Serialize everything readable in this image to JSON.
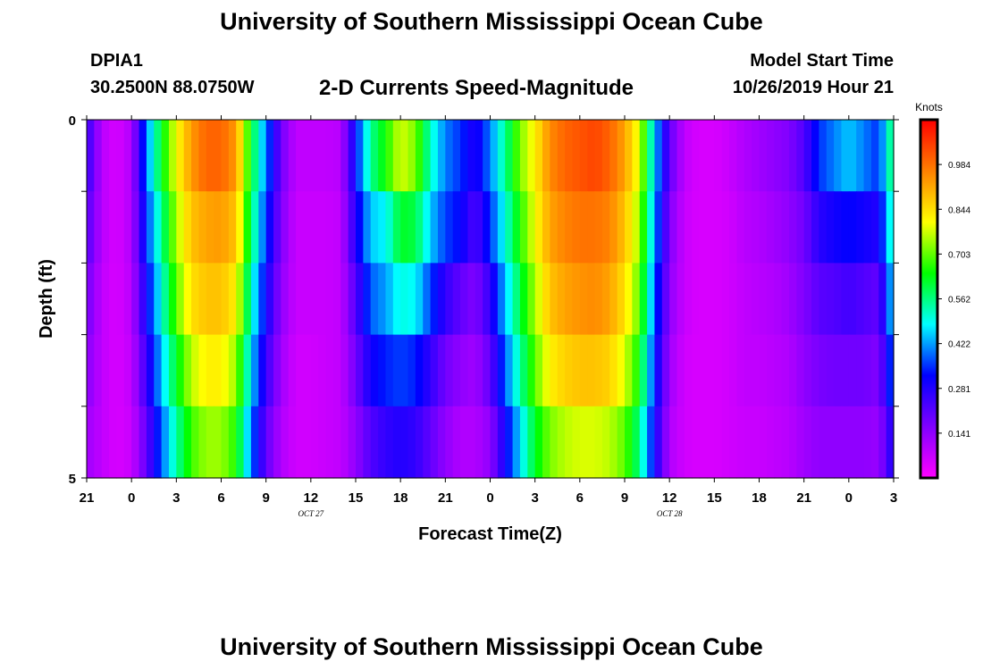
{
  "header": {
    "title": "University of Southern Mississippi Ocean Cube",
    "station_id": "DPIA1",
    "station_coords": "30.2500N 88.0750W",
    "model_start_label": "Model Start Time",
    "model_start_value": "10/26/2019 Hour 21"
  },
  "footer": {
    "title": "University of Southern Mississippi Ocean Cube"
  },
  "chart_data": {
    "type": "heatmap",
    "title": "2-D Currents Speed-Magnitude",
    "xlabel": "Forecast Time(Z)",
    "ylabel": "Depth (ft)",
    "colorbar_label": "Knots",
    "colorbar_ticks": [
      "0.141",
      "0.281",
      "0.422",
      "0.562",
      "0.703",
      "0.844",
      "0.984"
    ],
    "colorbar_range": [
      0,
      1.125
    ],
    "colors": [
      "#ff00ff",
      "#8000ff",
      "#0000ff",
      "#00ffff",
      "#00ff00",
      "#ffff00",
      "#ff8000",
      "#ff0000"
    ],
    "x_ticks": [
      "21",
      "0",
      "3",
      "6",
      "9",
      "12",
      "15",
      "18",
      "21",
      "0",
      "3",
      "6",
      "9",
      "12",
      "15",
      "18",
      "21",
      "0",
      "3"
    ],
    "x_date_labels": [
      {
        "label": "OCT 27",
        "after_tick": 5
      },
      {
        "label": "OCT 28",
        "after_tick": 13
      }
    ],
    "y_ticks": [
      "0",
      "5"
    ],
    "y_range": [
      0,
      5
    ],
    "x_hours_start": 21,
    "x_hours_step": 3,
    "hours_total": 54,
    "layers": 5,
    "layer_profiles": [
      [
        0.26,
        0.09,
        0.05,
        0.1,
        0.4,
        0.62,
        0.8,
        0.93,
        1.0,
        1.0,
        0.93,
        0.62,
        0.4,
        0.18,
        0.08,
        0.08,
        0.08,
        0.09,
        0.32,
        0.55,
        0.65,
        0.78,
        0.72,
        0.52,
        0.4,
        0.35,
        0.28,
        0.4,
        0.55,
        0.72,
        0.82,
        0.95,
        1.0,
        1.02,
        1.04,
        1.0,
        0.92,
        0.78,
        0.45,
        0.2,
        0.08,
        0.05,
        0.05,
        0.07,
        0.1,
        0.12,
        0.14,
        0.16,
        0.22,
        0.35,
        0.4,
        0.45,
        0.4,
        0.35,
        0.6
      ],
      [
        0.22,
        0.09,
        0.05,
        0.1,
        0.35,
        0.55,
        0.75,
        0.88,
        0.92,
        0.93,
        0.88,
        0.58,
        0.35,
        0.16,
        0.07,
        0.07,
        0.07,
        0.08,
        0.28,
        0.45,
        0.48,
        0.62,
        0.6,
        0.45,
        0.36,
        0.32,
        0.22,
        0.35,
        0.5,
        0.66,
        0.8,
        0.92,
        0.96,
        0.98,
        0.98,
        0.96,
        0.88,
        0.74,
        0.42,
        0.16,
        0.07,
        0.05,
        0.05,
        0.06,
        0.09,
        0.1,
        0.12,
        0.14,
        0.18,
        0.27,
        0.3,
        0.32,
        0.3,
        0.28,
        0.55
      ],
      [
        0.18,
        0.08,
        0.05,
        0.09,
        0.3,
        0.5,
        0.7,
        0.84,
        0.88,
        0.88,
        0.82,
        0.52,
        0.3,
        0.14,
        0.07,
        0.07,
        0.07,
        0.08,
        0.22,
        0.38,
        0.42,
        0.5,
        0.48,
        0.36,
        0.26,
        0.2,
        0.16,
        0.26,
        0.44,
        0.6,
        0.75,
        0.88,
        0.92,
        0.94,
        0.95,
        0.92,
        0.84,
        0.7,
        0.38,
        0.14,
        0.07,
        0.05,
        0.05,
        0.06,
        0.08,
        0.09,
        0.1,
        0.12,
        0.16,
        0.21,
        0.22,
        0.24,
        0.22,
        0.2,
        0.48
      ],
      [
        0.15,
        0.08,
        0.05,
        0.08,
        0.25,
        0.44,
        0.62,
        0.76,
        0.82,
        0.82,
        0.74,
        0.46,
        0.25,
        0.12,
        0.06,
        0.06,
        0.07,
        0.08,
        0.18,
        0.3,
        0.34,
        0.36,
        0.34,
        0.26,
        0.18,
        0.14,
        0.12,
        0.2,
        0.38,
        0.54,
        0.7,
        0.82,
        0.86,
        0.88,
        0.88,
        0.86,
        0.78,
        0.64,
        0.34,
        0.12,
        0.06,
        0.05,
        0.05,
        0.06,
        0.08,
        0.08,
        0.09,
        0.1,
        0.14,
        0.17,
        0.18,
        0.18,
        0.18,
        0.16,
        0.4
      ],
      [
        0.12,
        0.08,
        0.05,
        0.07,
        0.2,
        0.38,
        0.54,
        0.68,
        0.74,
        0.74,
        0.66,
        0.4,
        0.2,
        0.1,
        0.06,
        0.06,
        0.07,
        0.08,
        0.14,
        0.22,
        0.26,
        0.28,
        0.26,
        0.2,
        0.14,
        0.1,
        0.1,
        0.14,
        0.3,
        0.46,
        0.62,
        0.72,
        0.76,
        0.78,
        0.78,
        0.76,
        0.7,
        0.56,
        0.3,
        0.1,
        0.06,
        0.05,
        0.05,
        0.06,
        0.07,
        0.07,
        0.08,
        0.09,
        0.12,
        0.14,
        0.14,
        0.14,
        0.14,
        0.13,
        0.3
      ]
    ]
  }
}
